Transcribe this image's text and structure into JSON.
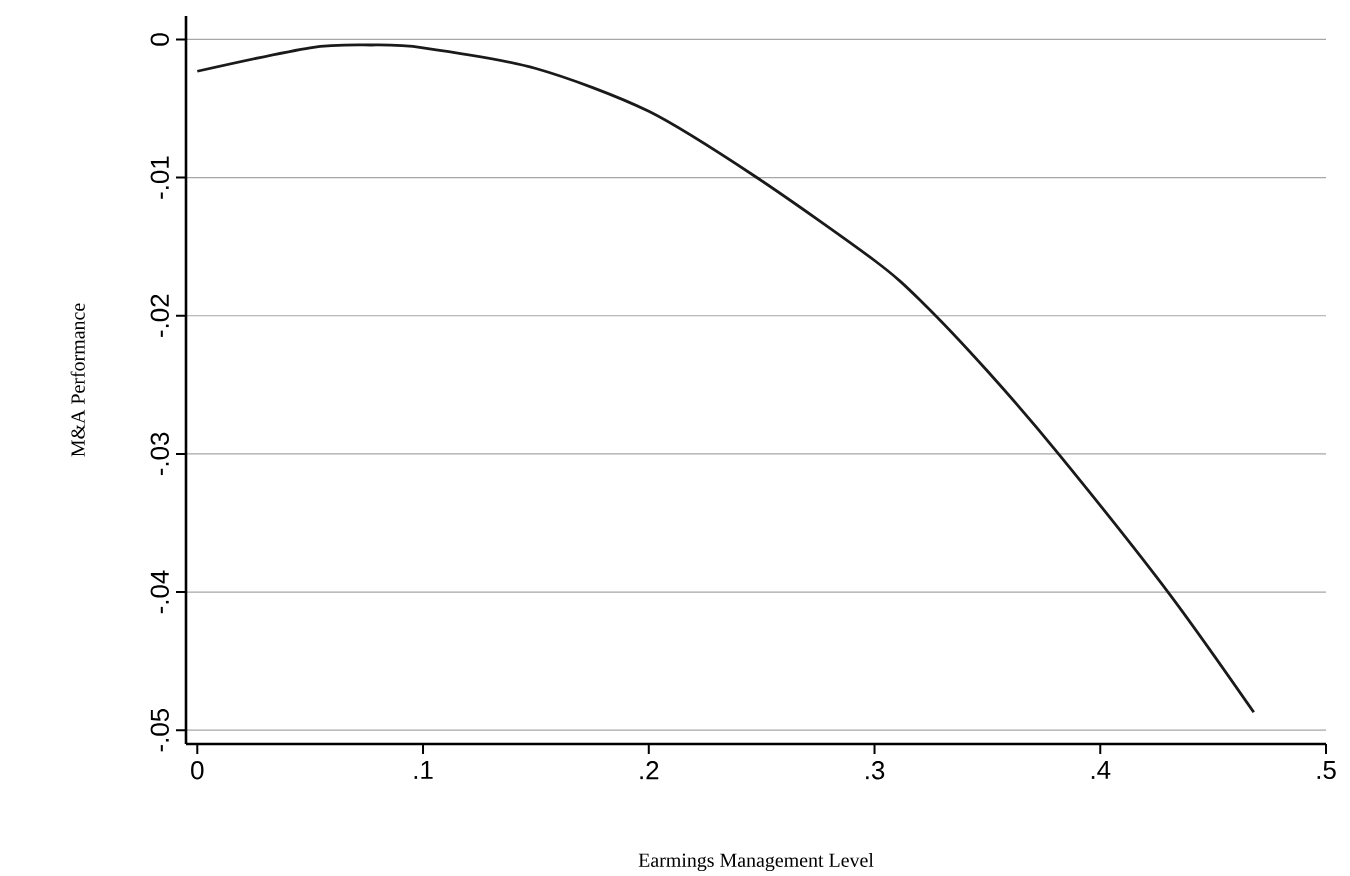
{
  "chart_data": {
    "type": "line",
    "xlabel": "Earmings Management Level",
    "ylabel": "M&A Performance",
    "x": [
      0,
      0.05,
      0.077,
      0.1,
      0.15,
      0.2,
      0.247,
      0.3,
      0.321,
      0.35,
      0.3815,
      0.43,
      0.468
    ],
    "values": [
      -0.0023,
      -0.0006,
      -0.0004,
      -0.0006,
      -0.0021,
      -0.0052,
      -0.0099,
      -0.016,
      -0.019,
      -0.024,
      -0.03,
      -0.04,
      -0.0487
    ],
    "color": "#1a1a1a",
    "marker": "none",
    "line_style": "solid",
    "grid": "y",
    "xlim": [
      -0.005,
      0.5
    ],
    "ylim": [
      -0.051,
      0.0017
    ],
    "xticks": [
      0,
      {
        "value": 0.1,
        "label": ".1"
      },
      {
        "value": 0.2,
        "label": ".2"
      },
      {
        "value": 0.3,
        "label": ".3"
      },
      {
        "value": 0.4,
        "label": ".4"
      },
      {
        "value": 0.5,
        "label": ".5"
      }
    ],
    "yticks": [
      0,
      {
        "value": -0.01,
        "label": "-.01"
      },
      {
        "value": -0.02,
        "label": "-.02"
      },
      {
        "value": -0.03,
        "label": "-.03"
      },
      {
        "value": -0.04,
        "label": "-.04"
      },
      {
        "value": -0.05,
        "label": "-.05"
      }
    ]
  }
}
